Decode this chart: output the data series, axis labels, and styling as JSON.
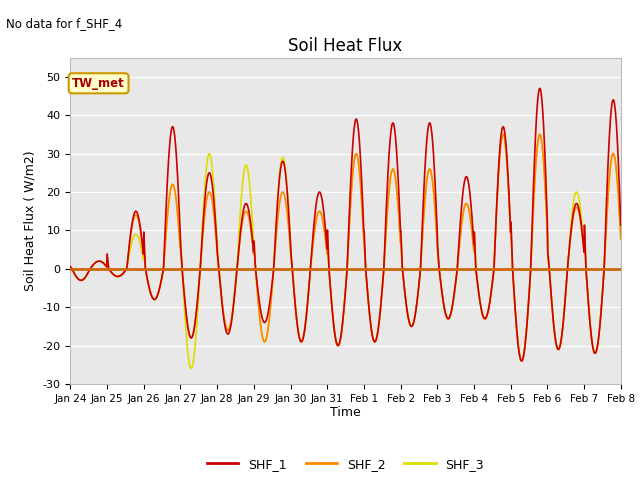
{
  "title": "Soil Heat Flux",
  "note": "No data for f_SHF_4",
  "ylabel": "Soil Heat Flux ( W/m2)",
  "xlabel": "Time",
  "ylim": [
    -30,
    55
  ],
  "yticks": [
    -30,
    -20,
    -10,
    0,
    10,
    20,
    30,
    40,
    50
  ],
  "background_color": "#e8e8e8",
  "line_colors": {
    "SHF_1": "#cc0000",
    "SHF_2": "#ff8800",
    "SHF_3": "#dddd00"
  },
  "hline_color": "#cc6600",
  "tw_met_box_facecolor": "#ffffcc",
  "tw_met_text_color": "#aa0000",
  "tw_met_edge_color": "#cc9900",
  "x_tick_labels": [
    "Jan 24",
    "Jan 25",
    "Jan 26",
    "Jan 27",
    "Jan 28",
    "Jan 29",
    "Jan 30",
    "Jan 31",
    "Feb 1",
    "Feb 2",
    "Feb 3",
    "Feb 4",
    "Feb 5",
    "Feb 6",
    "Feb 7",
    "Feb 8"
  ],
  "day_params": [
    [
      0,
      2,
      -3,
      2,
      -3,
      2,
      -3
    ],
    [
      1,
      15,
      -2,
      14,
      -2,
      9,
      -2
    ],
    [
      2,
      37,
      -8,
      22,
      -8,
      22,
      -8
    ],
    [
      3,
      25,
      -18,
      20,
      -18,
      30,
      -26
    ],
    [
      4,
      17,
      -17,
      15,
      -16,
      27,
      -16
    ],
    [
      5,
      28,
      -14,
      20,
      -19,
      29,
      -19
    ],
    [
      6,
      20,
      -19,
      15,
      -19,
      15,
      -19
    ],
    [
      7,
      39,
      -20,
      30,
      -20,
      30,
      -20
    ],
    [
      8,
      38,
      -19,
      26,
      -19,
      26,
      -19
    ],
    [
      9,
      38,
      -15,
      26,
      -15,
      26,
      -15
    ],
    [
      10,
      24,
      -13,
      17,
      -13,
      17,
      -13
    ],
    [
      11,
      37,
      -13,
      35,
      -13,
      35,
      -13
    ],
    [
      12,
      47,
      -24,
      35,
      -24,
      35,
      -24
    ],
    [
      13,
      17,
      -21,
      16,
      -21,
      20,
      -21
    ],
    [
      14,
      44,
      -22,
      30,
      -22,
      30,
      -22
    ]
  ]
}
